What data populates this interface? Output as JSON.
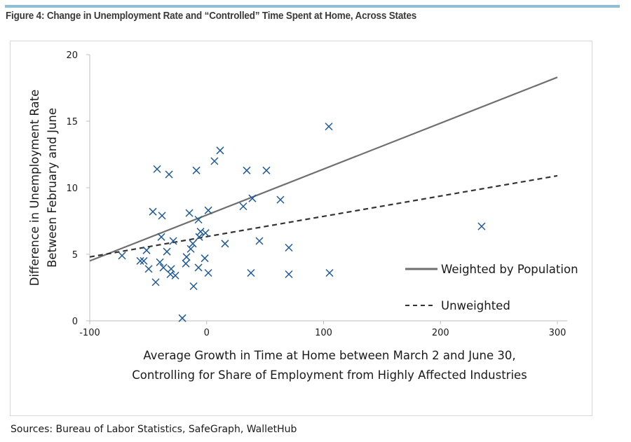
{
  "figure": {
    "title": "Figure 4: Change in Unemployment Rate and “Controlled” Time Spent at Home, Across States",
    "sources": "Sources: Bureau of Labor Statistics, SafeGraph, WalletHub",
    "accent_color": "#8cc0d8"
  },
  "chart_data": {
    "type": "scatter",
    "title": "Figure 4: Change in Unemployment Rate and “Controlled” Time Spent at Home, Across States",
    "xlabel": [
      "Average Growth in Time at Home between March 2 and June 30,",
      "Controlling for Share of Employment from Highly Affected Industries"
    ],
    "ylabel": [
      "Difference in Unemployment Rate",
      "Between February and June"
    ],
    "xlim": [
      -100,
      300
    ],
    "ylim": [
      0,
      20
    ],
    "xticks": [
      -100,
      0,
      100,
      200,
      300
    ],
    "yticks": [
      0,
      5,
      10,
      15,
      20
    ],
    "xtick_labels": [
      "-100",
      "0",
      "100",
      "200",
      "300"
    ],
    "ytick_labels": [
      "0",
      "5",
      "10",
      "15",
      "20"
    ],
    "grid": false,
    "legend_position": "bottom-right",
    "marker": "x",
    "marker_color": "#1f5a96",
    "points": [
      {
        "x": -72.4,
        "y": 4.9
      },
      {
        "x": -56.8,
        "y": 4.5
      },
      {
        "x": -53.8,
        "y": 4.5
      },
      {
        "x": -49.6,
        "y": 3.9
      },
      {
        "x": -51.4,
        "y": 5.3
      },
      {
        "x": -46.0,
        "y": 8.2
      },
      {
        "x": -38.2,
        "y": 7.9
      },
      {
        "x": -38.8,
        "y": 6.3
      },
      {
        "x": -43.6,
        "y": 2.9
      },
      {
        "x": -42.4,
        "y": 11.4
      },
      {
        "x": -32.2,
        "y": 11.0
      },
      {
        "x": -40.0,
        "y": 4.4
      },
      {
        "x": -37.0,
        "y": 4.0
      },
      {
        "x": -34.0,
        "y": 5.2
      },
      {
        "x": -28.6,
        "y": 6.0
      },
      {
        "x": -30.4,
        "y": 3.9
      },
      {
        "x": -31.0,
        "y": 3.5
      },
      {
        "x": -26.8,
        "y": 3.4
      },
      {
        "x": -20.8,
        "y": 0.2
      },
      {
        "x": -17.8,
        "y": 4.3
      },
      {
        "x": -17.2,
        "y": 4.8
      },
      {
        "x": -14.8,
        "y": 8.1
      },
      {
        "x": -13.6,
        "y": 5.4
      },
      {
        "x": -11.8,
        "y": 5.8
      },
      {
        "x": -11.2,
        "y": 2.6
      },
      {
        "x": -8.8,
        "y": 11.3
      },
      {
        "x": -7.0,
        "y": 7.6
      },
      {
        "x": -5.2,
        "y": 6.7
      },
      {
        "x": -6.4,
        "y": 6.3
      },
      {
        "x": -7.0,
        "y": 4.0
      },
      {
        "x": -1.6,
        "y": 4.7
      },
      {
        "x": -1.0,
        "y": 6.6
      },
      {
        "x": 1.4,
        "y": 8.3
      },
      {
        "x": 1.4,
        "y": 3.6
      },
      {
        "x": 6.7,
        "y": 12.0
      },
      {
        "x": 11.5,
        "y": 12.8
      },
      {
        "x": 15.7,
        "y": 5.8
      },
      {
        "x": 31.3,
        "y": 8.6
      },
      {
        "x": 34.3,
        "y": 11.3
      },
      {
        "x": 39.1,
        "y": 9.2
      },
      {
        "x": 37.9,
        "y": 3.6
      },
      {
        "x": 45.1,
        "y": 6.0
      },
      {
        "x": 51.1,
        "y": 11.3
      },
      {
        "x": 63.1,
        "y": 9.1
      },
      {
        "x": 70.3,
        "y": 5.5
      },
      {
        "x": 70.3,
        "y": 3.5
      },
      {
        "x": 104.5,
        "y": 14.6
      },
      {
        "x": 105.1,
        "y": 3.6
      },
      {
        "x": 235.2,
        "y": 7.1
      }
    ],
    "series": [
      {
        "name": "Weighted by Population",
        "style": "solid",
        "color": "#6f6f6f",
        "x": [
          -100,
          300
        ],
        "y": [
          4.5,
          18.3
        ]
      },
      {
        "name": "Unweighted",
        "style": "dashed",
        "color": "#333333",
        "x": [
          -100,
          300
        ],
        "y": [
          4.8,
          10.9
        ]
      }
    ]
  }
}
